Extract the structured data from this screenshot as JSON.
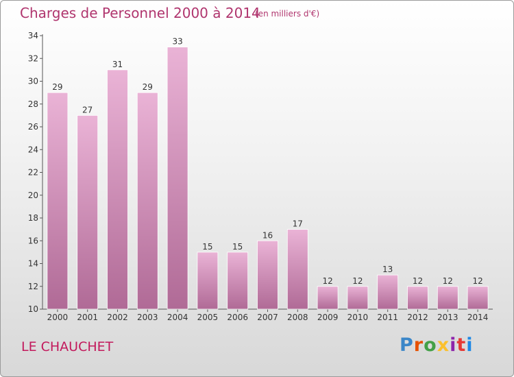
{
  "header": {
    "title": "Charges de Personnel 2000 à 2014",
    "subtitle": "(en milliers d'€)"
  },
  "footer": {
    "commune": "LE CHAUCHET",
    "logo_text": "Proxiti"
  },
  "colors": {
    "bar_light": "#eab3d6",
    "bar_dark": "#b06a96",
    "title": "#b0356e",
    "commune": "#c2185b",
    "logo": [
      "#3a86c8",
      "#e65100",
      "#43a047",
      "#fbc02d",
      "#8e24aa",
      "#e53935",
      "#1e88e5"
    ]
  },
  "chart_data": {
    "type": "bar",
    "categories": [
      "2000",
      "2001",
      "2002",
      "2003",
      "2004",
      "2005",
      "2006",
      "2007",
      "2008",
      "2009",
      "2010",
      "2011",
      "2012",
      "2013",
      "2014"
    ],
    "values": [
      29,
      27,
      31,
      29,
      33,
      15,
      15,
      16,
      17,
      12,
      12,
      13,
      12,
      12,
      12
    ],
    "data_labels": [
      "29",
      "27",
      "31",
      "29",
      "33",
      "15",
      "15",
      "16",
      "17",
      "12",
      "12",
      "13",
      "12",
      "12",
      "12"
    ],
    "yticks": [
      "10",
      "12",
      "14",
      "16",
      "18",
      "20",
      "22",
      "24",
      "26",
      "28",
      "30",
      "32",
      "34"
    ],
    "ylim": [
      10,
      34
    ],
    "grid": false,
    "title": "Charges de Personnel 2000 à 2014",
    "xlabel": "",
    "ylabel": ""
  }
}
